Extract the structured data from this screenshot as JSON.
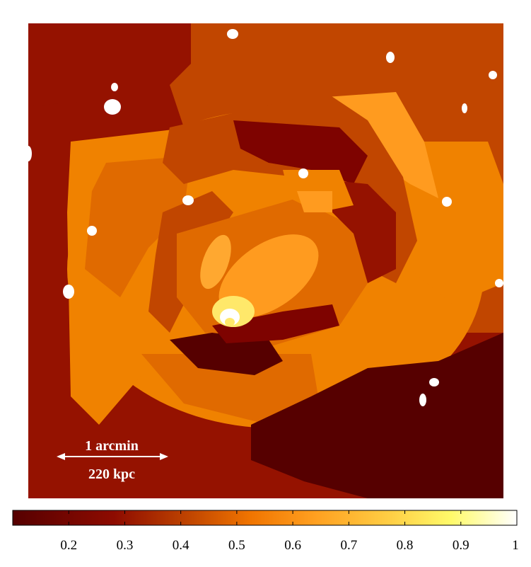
{
  "image": {
    "scale_bar": {
      "angular_label": "1 arcmin",
      "physical_label": "220 kpc"
    },
    "colorbar": {
      "colormap": "afmhot",
      "range": [
        0.1,
        1.0
      ],
      "tick_labels": [
        "0.2",
        "0.3",
        "0.4",
        "0.5",
        "0.6",
        "0.7",
        "0.8",
        "0.9",
        "1"
      ],
      "tick_values": [
        0.2,
        0.3,
        0.4,
        0.5,
        0.6,
        0.7,
        0.8,
        0.9,
        1.0
      ]
    },
    "colors": {
      "background": "#ffffff",
      "darkest": "#560000",
      "dark": "#7e0300",
      "mid_dark": "#951200",
      "mid": "#c14600",
      "mid_light": "#e06a00",
      "bright": "#f08200",
      "light": "#ff9b1f",
      "yellow": "#ffe86a",
      "white": "#ffffff"
    }
  }
}
